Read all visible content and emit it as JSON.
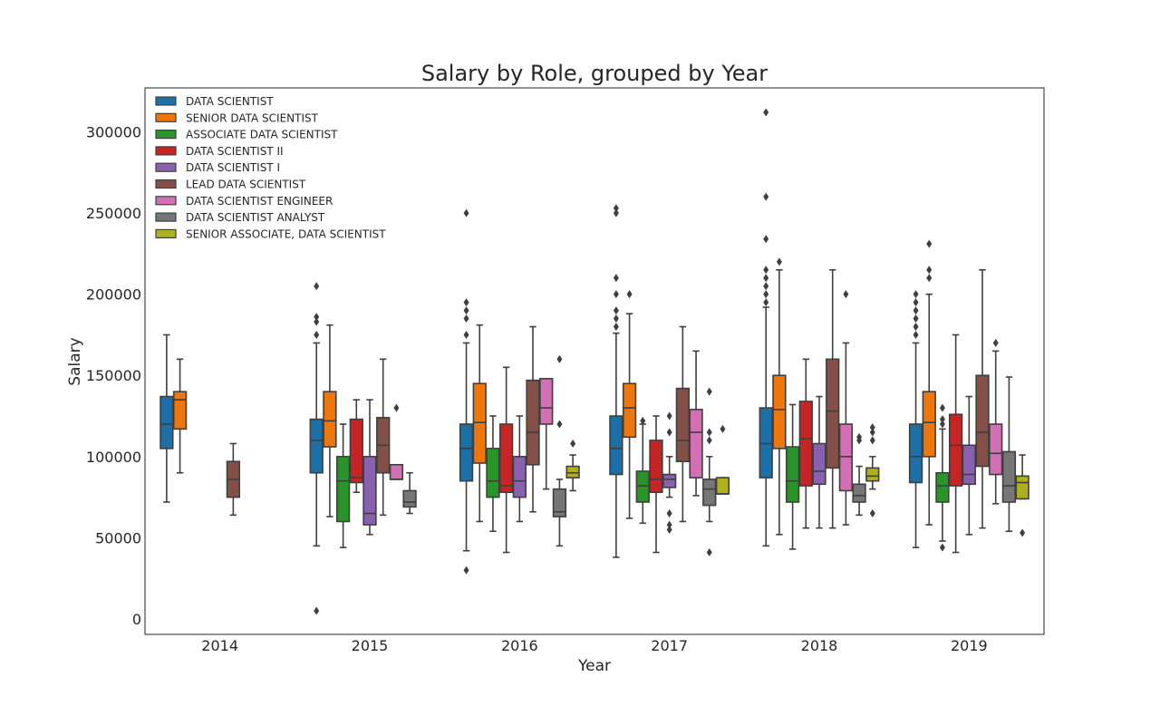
{
  "chart_data": {
    "type": "boxplot",
    "title": "Salary by Role, grouped by Year",
    "xlabel": "Year",
    "ylabel": "Salary",
    "ylim": [
      -10000,
      327000
    ],
    "yticks": [
      0,
      50000,
      100000,
      150000,
      200000,
      250000,
      300000
    ],
    "grid": false,
    "legend_position": "top-left",
    "categories": [
      "2014",
      "2015",
      "2016",
      "2017",
      "2018",
      "2019"
    ],
    "series": [
      {
        "name": "DATA SCIENTIST",
        "color": "#1f77b4",
        "boxes": [
          {
            "whislo": 72000,
            "q1": 105000,
            "med": 120000,
            "q3": 137000,
            "whishi": 175000,
            "fliers": []
          },
          {
            "whislo": 45000,
            "q1": 90000,
            "med": 110000,
            "q3": 123000,
            "whishi": 170000,
            "fliers": [
              5000,
              175000,
              183000,
              186000,
              205000
            ]
          },
          {
            "whislo": 42000,
            "q1": 85000,
            "med": 105000,
            "q3": 120000,
            "whishi": 170000,
            "fliers": [
              30000,
              175000,
              185000,
              190000,
              195000,
              250000
            ]
          },
          {
            "whislo": 38000,
            "q1": 89000,
            "med": 105000,
            "q3": 125000,
            "whishi": 176000,
            "fliers": [
              180000,
              185000,
              190000,
              200000,
              210000,
              250000,
              253000
            ]
          },
          {
            "whislo": 45000,
            "q1": 87000,
            "med": 108000,
            "q3": 130000,
            "whishi": 192000,
            "fliers": [
              195000,
              200000,
              205000,
              210000,
              215000,
              234000,
              260000,
              312000
            ]
          },
          {
            "whislo": 44000,
            "q1": 84000,
            "med": 100000,
            "q3": 120000,
            "whishi": 170000,
            "fliers": [
              175000,
              180000,
              185000,
              190000,
              195000,
              200000
            ]
          }
        ]
      },
      {
        "name": "SENIOR DATA SCIENTIST",
        "color": "#ff7f0e",
        "boxes": [
          {
            "whislo": 90000,
            "q1": 117000,
            "med": 135000,
            "q3": 140000,
            "whishi": 160000,
            "fliers": []
          },
          {
            "whislo": 63000,
            "q1": 106000,
            "med": 122000,
            "q3": 140000,
            "whishi": 181000,
            "fliers": []
          },
          {
            "whislo": 60000,
            "q1": 96000,
            "med": 121000,
            "q3": 145000,
            "whishi": 181000,
            "fliers": []
          },
          {
            "whislo": 62000,
            "q1": 112000,
            "med": 130000,
            "q3": 145000,
            "whishi": 188000,
            "fliers": [
              200000
            ]
          },
          {
            "whislo": 52000,
            "q1": 105000,
            "med": 129000,
            "q3": 150000,
            "whishi": 215000,
            "fliers": [
              220000
            ]
          },
          {
            "whislo": 58000,
            "q1": 100000,
            "med": 121000,
            "q3": 140000,
            "whishi": 200000,
            "fliers": [
              210000,
              215000,
              231000
            ]
          }
        ]
      },
      {
        "name": "ASSOCIATE DATA SCIENTIST",
        "color": "#2ca02c",
        "boxes": [
          null,
          {
            "whislo": 44000,
            "q1": 60000,
            "med": 85000,
            "q3": 100000,
            "whishi": 120000,
            "fliers": []
          },
          {
            "whislo": 54000,
            "q1": 75000,
            "med": 85000,
            "q3": 105000,
            "whishi": 125000,
            "fliers": []
          },
          {
            "whislo": 59000,
            "q1": 72000,
            "med": 82000,
            "q3": 91000,
            "whishi": 120000,
            "fliers": [
              122000
            ]
          },
          {
            "whislo": 43000,
            "q1": 72000,
            "med": 85000,
            "q3": 106000,
            "whishi": 132000,
            "fliers": []
          },
          {
            "whislo": 48000,
            "q1": 72000,
            "med": 82000,
            "q3": 90000,
            "whishi": 117000,
            "fliers": [
              44000,
              120000,
              123000,
              130000
            ]
          }
        ]
      },
      {
        "name": "DATA SCIENTIST II",
        "color": "#d62728",
        "boxes": [
          null,
          {
            "whislo": 78000,
            "q1": 84000,
            "med": 87000,
            "q3": 123000,
            "whishi": 135000,
            "fliers": []
          },
          {
            "whislo": 41000,
            "q1": 78000,
            "med": 82000,
            "q3": 120000,
            "whishi": 155000,
            "fliers": []
          },
          {
            "whislo": 41000,
            "q1": 78000,
            "med": 86000,
            "q3": 110000,
            "whishi": 125000,
            "fliers": []
          },
          {
            "whislo": 56000,
            "q1": 82000,
            "med": 111000,
            "q3": 134000,
            "whishi": 160000,
            "fliers": []
          },
          {
            "whislo": 41000,
            "q1": 82000,
            "med": 107000,
            "q3": 126000,
            "whishi": 175000,
            "fliers": []
          }
        ]
      },
      {
        "name": "DATA SCIENTIST I",
        "color": "#9467bd",
        "boxes": [
          null,
          {
            "whislo": 52000,
            "q1": 58000,
            "med": 65000,
            "q3": 100000,
            "whishi": 135000,
            "fliers": []
          },
          {
            "whislo": 60000,
            "q1": 75000,
            "med": 85000,
            "q3": 100000,
            "whishi": 125000,
            "fliers": []
          },
          {
            "whislo": 75000,
            "q1": 81000,
            "med": 86000,
            "q3": 89000,
            "whishi": 100000,
            "fliers": [
              55000,
              58000,
              65000,
              115000,
              125000
            ]
          },
          {
            "whislo": 56000,
            "q1": 83000,
            "med": 91000,
            "q3": 108000,
            "whishi": 137000,
            "fliers": []
          },
          {
            "whislo": 52000,
            "q1": 83000,
            "med": 89000,
            "q3": 107000,
            "whishi": 137000,
            "fliers": []
          }
        ]
      },
      {
        "name": "LEAD DATA SCIENTIST",
        "color": "#8c564b",
        "boxes": [
          {
            "whislo": 64000,
            "q1": 75000,
            "med": 86000,
            "q3": 97000,
            "whishi": 108000,
            "fliers": []
          },
          {
            "whislo": 64000,
            "q1": 90000,
            "med": 107000,
            "q3": 124000,
            "whishi": 160000,
            "fliers": []
          },
          {
            "whislo": 66000,
            "q1": 95000,
            "med": 115000,
            "q3": 147000,
            "whishi": 180000,
            "fliers": []
          },
          {
            "whislo": 60000,
            "q1": 97000,
            "med": 110000,
            "q3": 142000,
            "whishi": 180000,
            "fliers": []
          },
          {
            "whislo": 56000,
            "q1": 93000,
            "med": 128000,
            "q3": 160000,
            "whishi": 215000,
            "fliers": []
          },
          {
            "whislo": 56000,
            "q1": 94000,
            "med": 115000,
            "q3": 150000,
            "whishi": 215000,
            "fliers": []
          }
        ]
      },
      {
        "name": "DATA SCIENTIST ENGINEER",
        "color": "#e377c2",
        "boxes": [
          null,
          {
            "whislo": 86000,
            "q1": 86000,
            "med": 86000,
            "q3": 95000,
            "whishi": 95000,
            "fliers": [
              130000
            ]
          },
          {
            "whislo": 80000,
            "q1": 120000,
            "med": 130000,
            "q3": 148000,
            "whishi": 148000,
            "fliers": []
          },
          {
            "whislo": 76000,
            "q1": 87000,
            "med": 115000,
            "q3": 129000,
            "whishi": 165000,
            "fliers": []
          },
          {
            "whislo": 58000,
            "q1": 79000,
            "med": 100000,
            "q3": 120000,
            "whishi": 170000,
            "fliers": [
              200000
            ]
          },
          {
            "whislo": 71000,
            "q1": 89000,
            "med": 102000,
            "q3": 120000,
            "whishi": 165000,
            "fliers": [
              170000
            ]
          }
        ]
      },
      {
        "name": "DATA SCIENTIST ANALYST",
        "color": "#7f7f7f",
        "boxes": [
          null,
          {
            "whislo": 65000,
            "q1": 69000,
            "med": 72000,
            "q3": 79000,
            "whishi": 90000,
            "fliers": []
          },
          {
            "whislo": 45000,
            "q1": 63000,
            "med": 66000,
            "q3": 80000,
            "whishi": 86000,
            "fliers": [
              120000,
              160000
            ]
          },
          {
            "whislo": 60000,
            "q1": 70000,
            "med": 80000,
            "q3": 86000,
            "whishi": 100000,
            "fliers": [
              41000,
              110000,
              115000,
              140000
            ]
          },
          {
            "whislo": 64000,
            "q1": 72000,
            "med": 76000,
            "q3": 83000,
            "whishi": 94000,
            "fliers": [
              110000,
              112000
            ]
          },
          {
            "whislo": 54000,
            "q1": 72000,
            "med": 82000,
            "q3": 103000,
            "whishi": 149000,
            "fliers": []
          }
        ]
      },
      {
        "name": "SENIOR ASSOCIATE, DATA SCIENTIST",
        "color": "#bcbd22",
        "boxes": [
          null,
          null,
          {
            "whislo": 79000,
            "q1": 87000,
            "med": 90000,
            "q3": 94000,
            "whishi": 101000,
            "fliers": [
              108000
            ]
          },
          {
            "whislo": 77000,
            "q1": 77000,
            "med": 77000,
            "q3": 87000,
            "whishi": 87000,
            "fliers": [
              117000
            ]
          },
          {
            "whislo": 80000,
            "q1": 85000,
            "med": 88000,
            "q3": 93000,
            "whishi": 100000,
            "fliers": [
              65000,
              110000,
              115000,
              118000
            ]
          },
          {
            "whislo": 74000,
            "q1": 74000,
            "med": 84000,
            "q3": 88000,
            "whishi": 101000,
            "fliers": [
              53000
            ]
          }
        ]
      }
    ]
  }
}
